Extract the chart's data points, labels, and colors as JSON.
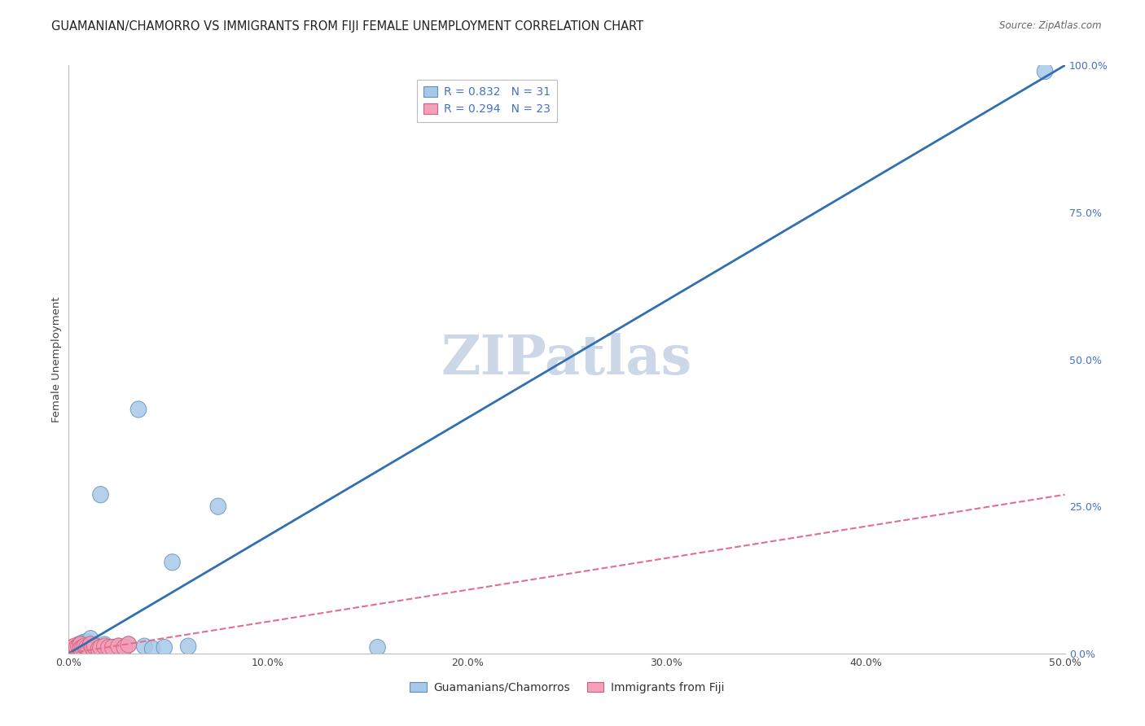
{
  "title": "GUAMANIAN/CHAMORRO VS IMMIGRANTS FROM FIJI FEMALE UNEMPLOYMENT CORRELATION CHART",
  "source": "Source: ZipAtlas.com",
  "ylabel": "Female Unemployment",
  "blue_R": 0.832,
  "blue_N": 31,
  "pink_R": 0.294,
  "pink_N": 23,
  "blue_fill": "#a8c8e8",
  "blue_edge": "#6090c0",
  "pink_fill": "#f4a0b8",
  "pink_edge": "#d06080",
  "blue_line_color": "#3070b0",
  "pink_line_color": "#e07090",
  "background_color": "#ffffff",
  "watermark": "ZIPatlas",
  "watermark_color": "#ccd8e8",
  "xlim": [
    0.0,
    0.5
  ],
  "ylim": [
    0.0,
    1.0
  ],
  "x_ticks": [
    0.0,
    0.1,
    0.2,
    0.3,
    0.4,
    0.5
  ],
  "y_ticks_right": [
    0.0,
    0.25,
    0.5,
    0.75,
    1.0
  ],
  "blue_scatter_x": [
    0.002,
    0.003,
    0.004,
    0.004,
    0.005,
    0.005,
    0.006,
    0.007,
    0.008,
    0.009,
    0.01,
    0.011,
    0.012,
    0.013,
    0.015,
    0.016,
    0.018,
    0.02,
    0.022,
    0.025,
    0.028,
    0.03,
    0.035,
    0.038,
    0.042,
    0.048,
    0.052,
    0.06,
    0.075,
    0.155,
    0.49
  ],
  "blue_scatter_y": [
    0.005,
    0.008,
    0.006,
    0.012,
    0.01,
    0.015,
    0.008,
    0.018,
    0.012,
    0.02,
    0.015,
    0.025,
    0.012,
    0.01,
    0.008,
    0.27,
    0.015,
    0.008,
    0.01,
    0.012,
    0.01,
    0.015,
    0.415,
    0.012,
    0.008,
    0.01,
    0.155,
    0.012,
    0.25,
    0.01,
    0.99
  ],
  "pink_scatter_x": [
    0.001,
    0.002,
    0.003,
    0.003,
    0.004,
    0.005,
    0.006,
    0.006,
    0.007,
    0.008,
    0.009,
    0.01,
    0.011,
    0.012,
    0.013,
    0.015,
    0.016,
    0.018,
    0.02,
    0.022,
    0.025,
    0.028,
    0.03
  ],
  "pink_scatter_y": [
    0.008,
    0.01,
    0.008,
    0.012,
    0.01,
    0.012,
    0.015,
    0.008,
    0.01,
    0.012,
    0.01,
    0.008,
    0.015,
    0.01,
    0.012,
    0.008,
    0.01,
    0.012,
    0.01,
    0.01,
    0.012,
    0.01,
    0.015
  ],
  "blue_line_x": [
    0.0,
    0.5
  ],
  "blue_line_y": [
    0.0,
    1.0
  ],
  "pink_line_x": [
    0.0,
    0.5
  ],
  "pink_line_y": [
    0.0,
    0.27
  ],
  "legend_labels": [
    "Guamanians/Chamorros",
    "Immigrants from Fiji"
  ],
  "grid_color": "#c8c8d0",
  "title_fontsize": 10.5,
  "tick_fontsize": 9,
  "legend_fontsize": 10,
  "right_tick_color": "#4472c4"
}
